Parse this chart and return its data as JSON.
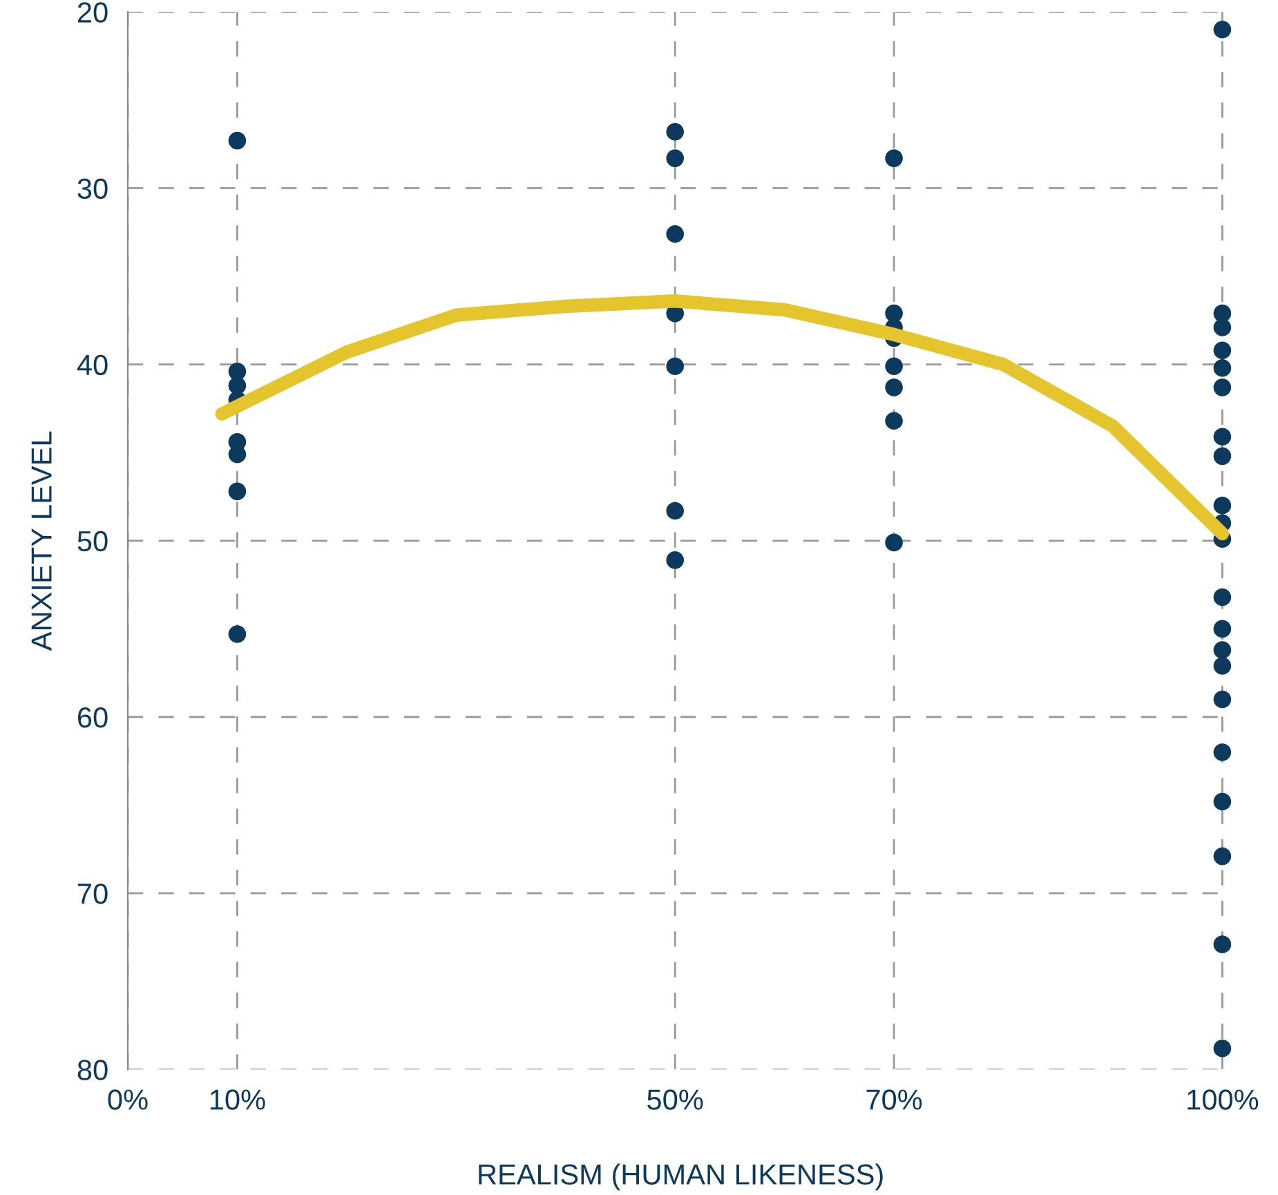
{
  "chart_data": {
    "type": "scatter",
    "xlabel": "REALISM (HUMAN LIKENESS)",
    "ylabel": "ANXIETY LEVEL",
    "xlim": [
      0,
      101
    ],
    "ylim": [
      80,
      20
    ],
    "xticks": [
      {
        "value": 0,
        "label": "0%"
      },
      {
        "value": 10,
        "label": "10%"
      },
      {
        "value": 50,
        "label": "50%"
      },
      {
        "value": 70,
        "label": "70%"
      },
      {
        "value": 100,
        "label": "100%"
      }
    ],
    "yticks": [
      20,
      30,
      40,
      50,
      60,
      70,
      80
    ],
    "grid": true,
    "legend": false,
    "series": [
      {
        "marker": "circle",
        "color": "#0d3a5c",
        "x": [
          10,
          10,
          10,
          10,
          10,
          10,
          10,
          10,
          50,
          50,
          50,
          50,
          50,
          50,
          50,
          70,
          70,
          70,
          70,
          70,
          70,
          70,
          70,
          100,
          100,
          100,
          100,
          100,
          100,
          100,
          100,
          100,
          100,
          100,
          100,
          100,
          100,
          100,
          100,
          100,
          100,
          100,
          100,
          100
        ],
        "values": [
          27.3,
          40.4,
          41.2,
          42.0,
          44.4,
          45.1,
          47.2,
          55.3,
          26.8,
          28.3,
          32.6,
          37.1,
          40.1,
          48.3,
          51.1,
          28.3,
          37.1,
          37.9,
          38.5,
          40.1,
          41.3,
          43.2,
          50.1,
          21.0,
          37.1,
          37.9,
          39.2,
          40.2,
          41.3,
          44.1,
          45.2,
          48.0,
          49.0,
          49.9,
          53.2,
          55.0,
          56.2,
          57.1,
          59.0,
          62.0,
          64.8,
          67.9,
          72.9,
          78.8
        ]
      },
      {
        "type": "line",
        "color": "#e5c52e",
        "x": [
          8.6,
          20,
          30,
          40,
          50,
          60,
          70,
          80,
          90,
          100
        ],
        "values": [
          42.8,
          39.3,
          37.2,
          36.7,
          36.4,
          36.9,
          38.3,
          40.0,
          43.5,
          49.6
        ]
      }
    ]
  }
}
